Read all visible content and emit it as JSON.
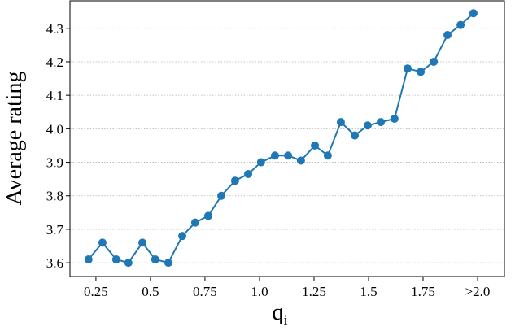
{
  "chart_data": {
    "type": "line",
    "xlabel": "q",
    "xlabel_subscript": "i",
    "ylabel": "Average rating",
    "x": [
      0.216,
      0.28,
      0.343,
      0.399,
      0.463,
      0.522,
      0.582,
      0.646,
      0.705,
      0.765,
      0.825,
      0.888,
      0.948,
      1.007,
      1.071,
      1.131,
      1.19,
      1.254,
      1.313,
      1.373,
      1.437,
      1.496,
      1.556,
      1.619,
      1.679,
      1.739,
      1.799,
      1.862,
      1.922,
      1.981
    ],
    "series": [
      {
        "name": "Average rating",
        "color": "#1f77b4",
        "values": [
          3.61,
          3.66,
          3.61,
          3.6,
          3.66,
          3.61,
          3.6,
          3.68,
          3.72,
          3.74,
          3.8,
          3.845,
          3.865,
          3.9,
          3.92,
          3.92,
          3.905,
          3.95,
          3.92,
          4.02,
          3.98,
          4.01,
          4.02,
          4.03,
          4.18,
          4.17,
          4.2,
          4.28,
          4.31,
          4.345
        ]
      }
    ],
    "xlim": [
      0.131,
      2.123
    ],
    "ylim": [
      3.559,
      4.382
    ],
    "xticks": [
      0.25,
      0.5,
      0.75,
      {
        "value": 1.0,
        "label": "1.0"
      },
      1.25,
      1.5,
      1.75,
      {
        "value": 2.0,
        "label": ">2.0"
      }
    ],
    "yticks": [
      3.6,
      3.7,
      3.8,
      3.9,
      {
        "value": 4.0,
        "label": "4.0"
      },
      4.1,
      4.2,
      4.3
    ],
    "grid": true
  }
}
